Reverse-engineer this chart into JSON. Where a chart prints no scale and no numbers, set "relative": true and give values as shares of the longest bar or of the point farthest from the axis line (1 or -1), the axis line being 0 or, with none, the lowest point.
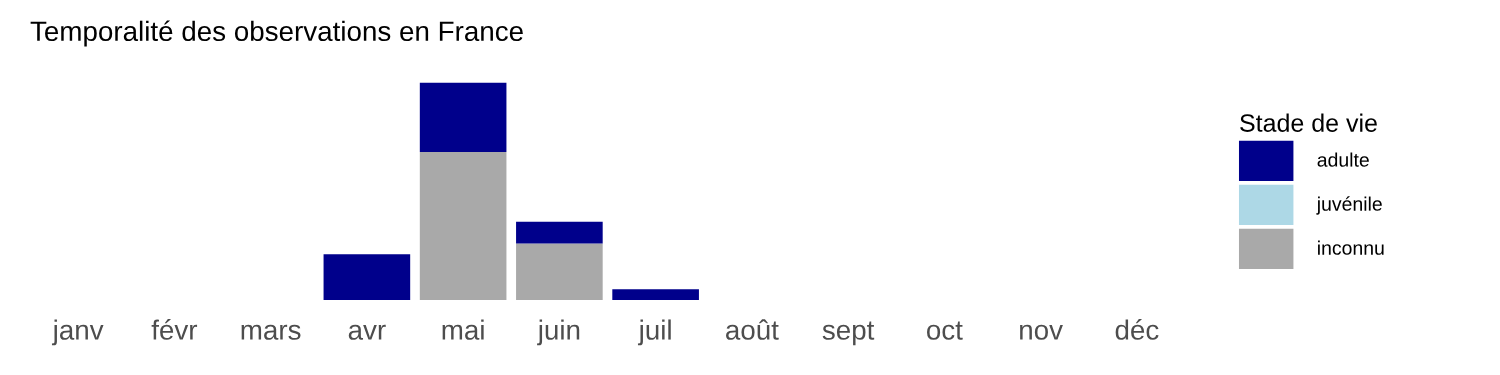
{
  "chart_data": {
    "type": "bar",
    "title": "Temporalité des observations en France",
    "stacked": true,
    "relative": true,
    "legend": "right",
    "legend_title": "Stade de vie",
    "grid": false,
    "categories": [
      "janv",
      "févr",
      "mars",
      "avr",
      "mai",
      "juin",
      "juil",
      "août",
      "sept",
      "oct",
      "nov",
      "déc"
    ],
    "series": [
      {
        "name": "inconnu",
        "color": "#a9a9a9",
        "values": [
          0,
          0,
          0,
          0,
          0.68,
          0.26,
          0,
          0,
          0,
          0,
          0,
          0
        ]
      },
      {
        "name": "juvénile",
        "color": "#add8e6",
        "values": [
          0,
          0,
          0,
          0,
          0,
          0,
          0,
          0,
          0,
          0,
          0,
          0
        ]
      },
      {
        "name": "adulte",
        "color": "#00008b",
        "values": [
          0,
          0,
          0,
          0.21,
          0.32,
          0.1,
          0.05,
          0,
          0,
          0,
          0,
          0
        ]
      }
    ]
  }
}
